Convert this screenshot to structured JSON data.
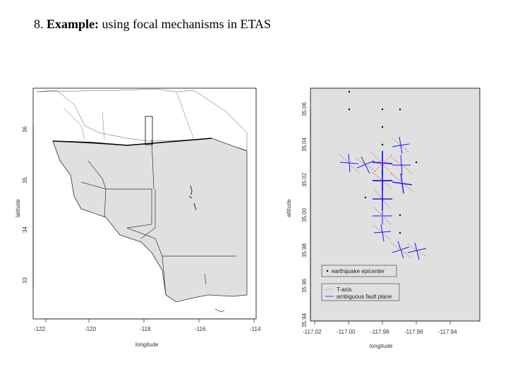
{
  "slide": {
    "number": "8.",
    "title_bold": "Example:",
    "title_rest": " using focal mechanisms in ETAS"
  },
  "map_plot": {
    "xlabel": "longitude",
    "ylabel": "latitude",
    "x_ticks": [
      "-122",
      "-120",
      "-118",
      "-116",
      "-114"
    ],
    "y_ticks": [
      "36",
      "35",
      "34",
      "33"
    ],
    "fill_color": "#e0e0e0",
    "line_color": "#333333"
  },
  "focal_plot": {
    "xlabel": "longitude",
    "ylabel": "altitude",
    "x_ticks": [
      "-117.02",
      "-117.00",
      "-117.98",
      "-117.96",
      "-117.94"
    ],
    "y_ticks": [
      "35.06",
      "35.04",
      "35.02",
      "35.00",
      "35.98",
      "35.96",
      "35.94"
    ],
    "legend_top": {
      "epicenter": "earthquake epicenter"
    },
    "legend_bottom": {
      "t_axis": "T-axis",
      "fault_plane": "ambiguous fault plane"
    },
    "background": "#e0e0e0",
    "t_axis_color": "#ff4444",
    "fault_color": "#1a1aff"
  }
}
